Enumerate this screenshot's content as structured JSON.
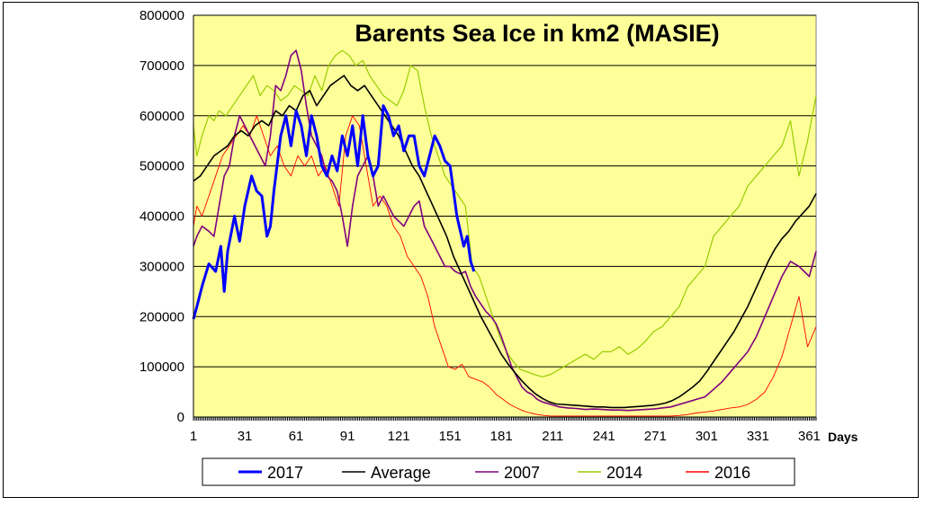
{
  "chart_data": {
    "type": "line",
    "title": "Barents Sea Ice in km2 (MASIE)",
    "xlabel": "Days",
    "ylabel": "",
    "xlim": [
      1,
      365
    ],
    "ylim": [
      0,
      800000
    ],
    "x_ticks": [
      1,
      31,
      61,
      91,
      121,
      151,
      181,
      211,
      241,
      271,
      301,
      331,
      361
    ],
    "y_ticks": [
      0,
      100000,
      200000,
      300000,
      400000,
      500000,
      600000,
      700000,
      800000
    ],
    "y_tick_labels": [
      "0",
      "100000",
      "200000",
      "300000",
      "400000",
      "500000",
      "600000",
      "700000",
      "800000"
    ],
    "grid": "horizontal",
    "legend_position": "bottom",
    "plot_background": "#FFFF99",
    "series": [
      {
        "name": "2017",
        "color": "#0000FF",
        "width": 3,
        "x": [
          1,
          3,
          6,
          10,
          14,
          17,
          19,
          21,
          25,
          28,
          31,
          35,
          38,
          41,
          44,
          46,
          48,
          52,
          55,
          58,
          61,
          64,
          67,
          70,
          73,
          76,
          79,
          82,
          85,
          88,
          91,
          94,
          97,
          100,
          103,
          106,
          109,
          112,
          115,
          118,
          121,
          124,
          127,
          130,
          133,
          136,
          139,
          142,
          145,
          148,
          151,
          153,
          155,
          157,
          159,
          161,
          163,
          165
        ],
        "y": [
          195000,
          220000,
          260000,
          305000,
          290000,
          340000,
          250000,
          330000,
          400000,
          350000,
          420000,
          480000,
          450000,
          440000,
          360000,
          380000,
          450000,
          560000,
          600000,
          540000,
          610000,
          580000,
          520000,
          600000,
          560000,
          500000,
          480000,
          520000,
          490000,
          560000,
          520000,
          580000,
          500000,
          600000,
          520000,
          480000,
          500000,
          620000,
          600000,
          560000,
          580000,
          530000,
          560000,
          560000,
          500000,
          480000,
          520000,
          560000,
          540000,
          510000,
          500000,
          450000,
          400000,
          370000,
          340000,
          360000,
          310000,
          290000
        ]
      },
      {
        "name": "Average",
        "color": "#000000",
        "width": 1.6,
        "x": [
          1,
          5,
          9,
          13,
          17,
          21,
          25,
          29,
          33,
          37,
          41,
          45,
          49,
          53,
          57,
          61,
          65,
          69,
          73,
          77,
          81,
          85,
          89,
          93,
          97,
          101,
          105,
          109,
          113,
          117,
          121,
          125,
          129,
          133,
          137,
          141,
          145,
          149,
          153,
          157,
          161,
          165,
          169,
          173,
          177,
          181,
          185,
          189,
          193,
          197,
          201,
          205,
          209,
          213,
          217,
          221,
          225,
          229,
          233,
          237,
          241,
          245,
          249,
          253,
          257,
          261,
          265,
          269,
          273,
          277,
          281,
          285,
          289,
          293,
          297,
          301,
          305,
          309,
          313,
          317,
          321,
          325,
          329,
          333,
          337,
          341,
          345,
          349,
          353,
          357,
          361,
          365
        ],
        "y": [
          470000,
          480000,
          500000,
          520000,
          530000,
          540000,
          560000,
          570000,
          560000,
          580000,
          590000,
          580000,
          610000,
          600000,
          620000,
          610000,
          640000,
          650000,
          620000,
          640000,
          660000,
          670000,
          680000,
          660000,
          650000,
          660000,
          640000,
          620000,
          600000,
          580000,
          560000,
          530000,
          500000,
          480000,
          450000,
          420000,
          390000,
          360000,
          320000,
          290000,
          260000,
          230000,
          200000,
          175000,
          150000,
          125000,
          105000,
          88000,
          72000,
          58000,
          46000,
          37000,
          30000,
          26000,
          25000,
          24000,
          23000,
          22000,
          21000,
          20000,
          20000,
          19000,
          19000,
          19000,
          20000,
          21000,
          22000,
          23000,
          25000,
          28000,
          33000,
          40000,
          50000,
          60000,
          72000,
          90000,
          110000,
          130000,
          150000,
          170000,
          195000,
          220000,
          250000,
          280000,
          310000,
          335000,
          355000,
          370000,
          390000,
          405000,
          420000,
          445000
        ]
      },
      {
        "name": "2007",
        "color": "#800080",
        "width": 1.6,
        "x": [
          1,
          3,
          6,
          10,
          13,
          16,
          19,
          22,
          25,
          28,
          31,
          34,
          37,
          40,
          43,
          46,
          49,
          52,
          55,
          58,
          61,
          64,
          67,
          70,
          73,
          76,
          79,
          82,
          85,
          88,
          91,
          94,
          97,
          100,
          103,
          106,
          109,
          112,
          115,
          118,
          121,
          124,
          127,
          130,
          133,
          136,
          139,
          142,
          145,
          148,
          151,
          154,
          157,
          160,
          163,
          166,
          169,
          172,
          175,
          178,
          181,
          184,
          187,
          190,
          193,
          196,
          199,
          202,
          205,
          210,
          215,
          220,
          225,
          230,
          235,
          240,
          245,
          250,
          255,
          260,
          265,
          270,
          275,
          280,
          285,
          290,
          295,
          300,
          305,
          310,
          315,
          320,
          325,
          330,
          335,
          340,
          345,
          350,
          355,
          358,
          361,
          365
        ],
        "y": [
          340000,
          360000,
          380000,
          370000,
          360000,
          420000,
          480000,
          500000,
          560000,
          600000,
          580000,
          560000,
          540000,
          520000,
          500000,
          560000,
          660000,
          650000,
          680000,
          720000,
          730000,
          690000,
          620000,
          560000,
          540000,
          520000,
          480000,
          470000,
          450000,
          400000,
          340000,
          420000,
          480000,
          500000,
          520000,
          480000,
          420000,
          440000,
          420000,
          400000,
          390000,
          380000,
          400000,
          420000,
          430000,
          380000,
          360000,
          340000,
          320000,
          300000,
          300000,
          290000,
          285000,
          290000,
          260000,
          240000,
          225000,
          210000,
          200000,
          185000,
          160000,
          130000,
          100000,
          80000,
          60000,
          50000,
          45000,
          35000,
          30000,
          25000,
          20000,
          18000,
          17000,
          15000,
          16000,
          15000,
          14000,
          14000,
          13000,
          14000,
          15000,
          16000,
          18000,
          20000,
          25000,
          30000,
          35000,
          40000,
          55000,
          70000,
          90000,
          110000,
          130000,
          160000,
          200000,
          240000,
          280000,
          310000,
          300000,
          290000,
          280000,
          330000
        ]
      },
      {
        "name": "2014",
        "color": "#99CC00",
        "width": 1.2,
        "x": [
          1,
          3,
          6,
          10,
          13,
          16,
          20,
          24,
          28,
          32,
          36,
          40,
          44,
          48,
          52,
          56,
          60,
          64,
          68,
          72,
          76,
          80,
          84,
          88,
          92,
          96,
          100,
          104,
          108,
          112,
          116,
          120,
          124,
          128,
          132,
          136,
          140,
          144,
          148,
          152,
          156,
          160,
          164,
          168,
          172,
          176,
          180,
          184,
          188,
          192,
          196,
          200,
          205,
          210,
          215,
          220,
          225,
          230,
          235,
          240,
          245,
          250,
          255,
          260,
          265,
          270,
          275,
          280,
          285,
          290,
          295,
          300,
          305,
          310,
          315,
          320,
          325,
          330,
          335,
          340,
          345,
          350,
          355,
          360,
          365
        ],
        "y": [
          580000,
          520000,
          560000,
          600000,
          590000,
          610000,
          600000,
          620000,
          640000,
          660000,
          680000,
          640000,
          660000,
          650000,
          630000,
          640000,
          660000,
          650000,
          640000,
          680000,
          650000,
          700000,
          720000,
          730000,
          720000,
          700000,
          710000,
          680000,
          660000,
          640000,
          630000,
          620000,
          650000,
          700000,
          690000,
          620000,
          560000,
          520000,
          480000,
          460000,
          440000,
          420000,
          300000,
          280000,
          240000,
          200000,
          160000,
          130000,
          110000,
          95000,
          90000,
          85000,
          80000,
          85000,
          95000,
          105000,
          115000,
          125000,
          115000,
          130000,
          130000,
          140000,
          125000,
          135000,
          150000,
          170000,
          180000,
          200000,
          220000,
          260000,
          280000,
          300000,
          360000,
          380000,
          400000,
          420000,
          460000,
          480000,
          500000,
          520000,
          540000,
          590000,
          480000,
          550000,
          640000
        ]
      },
      {
        "name": "2016",
        "color": "#FF0000",
        "width": 0.9,
        "x": [
          1,
          3,
          6,
          10,
          14,
          18,
          22,
          26,
          30,
          34,
          38,
          42,
          46,
          50,
          54,
          58,
          62,
          66,
          70,
          74,
          78,
          82,
          86,
          90,
          94,
          98,
          102,
          106,
          110,
          114,
          118,
          122,
          126,
          130,
          134,
          138,
          142,
          146,
          150,
          154,
          158,
          162,
          166,
          170,
          174,
          178,
          182,
          186,
          190,
          194,
          198,
          202,
          206,
          210,
          215,
          220,
          225,
          230,
          235,
          240,
          245,
          250,
          255,
          260,
          265,
          270,
          275,
          280,
          285,
          290,
          295,
          300,
          305,
          310,
          315,
          320,
          325,
          330,
          335,
          340,
          345,
          350,
          355,
          360,
          365
        ],
        "y": [
          380000,
          420000,
          400000,
          440000,
          480000,
          520000,
          540000,
          560000,
          580000,
          560000,
          600000,
          560000,
          520000,
          540000,
          500000,
          480000,
          520000,
          500000,
          520000,
          480000,
          500000,
          460000,
          420000,
          560000,
          600000,
          580000,
          500000,
          420000,
          440000,
          420000,
          380000,
          360000,
          320000,
          300000,
          280000,
          240000,
          180000,
          140000,
          100000,
          95000,
          105000,
          80000,
          75000,
          70000,
          60000,
          45000,
          35000,
          25000,
          18000,
          12000,
          8000,
          5000,
          3000,
          2000,
          2000,
          2000,
          2000,
          2000,
          2000,
          2000,
          2000,
          2000,
          2000,
          2000,
          2000,
          2000,
          2000,
          2000,
          3000,
          5000,
          8000,
          10000,
          12000,
          15000,
          18000,
          20000,
          25000,
          35000,
          50000,
          80000,
          120000,
          180000,
          240000,
          140000,
          180000
        ]
      }
    ]
  }
}
